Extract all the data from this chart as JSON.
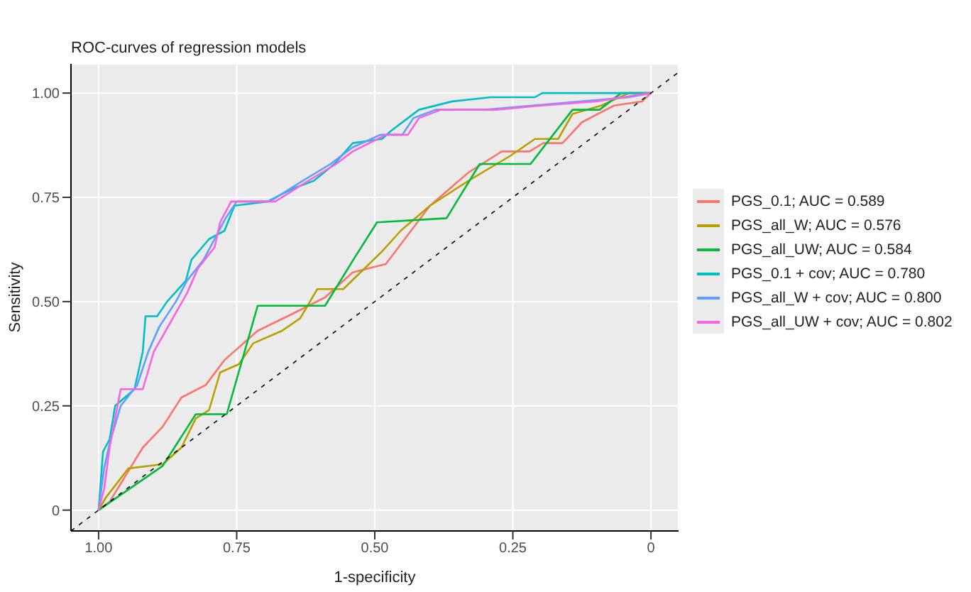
{
  "chart_data": {
    "type": "line",
    "title": "ROC-curves of regression models",
    "xlabel": "1-specificity",
    "ylabel": "Sensitivity",
    "xlim": [
      1.05,
      -0.05
    ],
    "ylim": [
      -0.05,
      1.07
    ],
    "xticks": [
      {
        "value": 1,
        "label": "1.00"
      },
      {
        "value": 0.75,
        "label": "0.75"
      },
      {
        "value": 0.5,
        "label": "0.50"
      },
      {
        "value": 0.25,
        "label": "0.25"
      },
      {
        "value": 0,
        "label": "0"
      }
    ],
    "yticks": [
      {
        "value": 0,
        "label": "0"
      },
      {
        "value": 0.25,
        "label": "0.25"
      },
      {
        "value": 0.5,
        "label": "0.50"
      },
      {
        "value": 0.75,
        "label": "0.75"
      },
      {
        "value": 1,
        "label": "1.00"
      }
    ],
    "grid": true,
    "legend": "right",
    "line_style": "solid",
    "marker": "none",
    "series": [
      {
        "name": "PGS_0.1; AUC = 0.589",
        "color": "#f8766d",
        "x": [
          1,
          0.98,
          0.92,
          0.884,
          0.85,
          0.806,
          0.772,
          0.712,
          0.65,
          0.59,
          0.54,
          0.48,
          0.4,
          0.33,
          0.27,
          0.22,
          0.195,
          0.16,
          0.125,
          0.067,
          0.016,
          0
        ],
        "values": [
          0,
          0.02,
          0.15,
          0.2,
          0.27,
          0.3,
          0.36,
          0.43,
          0.47,
          0.51,
          0.57,
          0.59,
          0.73,
          0.81,
          0.86,
          0.86,
          0.88,
          0.88,
          0.93,
          0.97,
          0.98,
          1
        ]
      },
      {
        "name": "PGS_all_W; AUC = 0.576",
        "color": "#b79f00",
        "x": [
          1,
          0.987,
          0.946,
          0.884,
          0.85,
          0.824,
          0.8,
          0.78,
          0.746,
          0.72,
          0.668,
          0.635,
          0.604,
          0.557,
          0.487,
          0.453,
          0.4,
          0.33,
          0.254,
          0.21,
          0.168,
          0.142,
          0.09,
          0.04,
          0
        ],
        "values": [
          0,
          0.03,
          0.1,
          0.11,
          0.15,
          0.22,
          0.24,
          0.33,
          0.35,
          0.4,
          0.43,
          0.46,
          0.53,
          0.53,
          0.62,
          0.67,
          0.73,
          0.79,
          0.85,
          0.89,
          0.89,
          0.95,
          0.97,
          1,
          1
        ]
      },
      {
        "name": "PGS_all_UW; AUC = 0.584",
        "color": "#00ba38",
        "x": [
          1,
          0.884,
          0.824,
          0.768,
          0.712,
          0.59,
          0.539,
          0.496,
          0.37,
          0.31,
          0.218,
          0.142,
          0.093,
          0.054,
          0
        ],
        "values": [
          0,
          0.106,
          0.23,
          0.23,
          0.49,
          0.49,
          0.6,
          0.69,
          0.7,
          0.83,
          0.83,
          0.96,
          0.96,
          1,
          1
        ]
      },
      {
        "name": "PGS_0.1 + cov; AUC = 0.780",
        "color": "#00bfc4",
        "x": [
          1,
          0.992,
          0.98,
          0.97,
          0.935,
          0.92,
          0.915,
          0.894,
          0.876,
          0.842,
          0.832,
          0.8,
          0.772,
          0.754,
          0.694,
          0.65,
          0.61,
          0.573,
          0.54,
          0.487,
          0.47,
          0.42,
          0.36,
          0.29,
          0.21,
          0.197,
          0
        ],
        "values": [
          0,
          0.14,
          0.17,
          0.25,
          0.29,
          0.38,
          0.465,
          0.465,
          0.5,
          0.55,
          0.6,
          0.65,
          0.67,
          0.73,
          0.74,
          0.77,
          0.79,
          0.83,
          0.88,
          0.89,
          0.91,
          0.96,
          0.98,
          0.99,
          0.99,
          1,
          1
        ]
      },
      {
        "name": "PGS_all_W + cov; AUC = 0.800",
        "color": "#619cff",
        "x": [
          1,
          0.99,
          0.98,
          0.96,
          0.93,
          0.91,
          0.89,
          0.86,
          0.84,
          0.81,
          0.79,
          0.77,
          0.75,
          0.69,
          0.63,
          0.58,
          0.54,
          0.49,
          0.45,
          0.43,
          0.39,
          0.3,
          0.04,
          0
        ],
        "values": [
          0,
          0.1,
          0.16,
          0.25,
          0.3,
          0.38,
          0.44,
          0.5,
          0.55,
          0.6,
          0.65,
          0.7,
          0.74,
          0.74,
          0.79,
          0.83,
          0.87,
          0.9,
          0.9,
          0.94,
          0.96,
          0.96,
          0.99,
          1
        ]
      },
      {
        "name": "PGS_all_UW + cov; AUC = 0.802",
        "color": "#f564e3",
        "x": [
          1,
          0.99,
          0.98,
          0.97,
          0.96,
          0.92,
          0.9,
          0.87,
          0.84,
          0.82,
          0.79,
          0.78,
          0.76,
          0.68,
          0.62,
          0.57,
          0.54,
          0.48,
          0.44,
          0.42,
          0.38,
          0.28,
          0.2,
          0.1,
          0
        ],
        "values": [
          0,
          0.05,
          0.15,
          0.22,
          0.29,
          0.29,
          0.38,
          0.45,
          0.52,
          0.58,
          0.63,
          0.69,
          0.74,
          0.74,
          0.79,
          0.83,
          0.86,
          0.9,
          0.9,
          0.94,
          0.96,
          0.96,
          0.97,
          0.98,
          1
        ]
      },
      {
        "type": "line",
        "color": "#000000",
        "line_style": "dashed",
        "x": [
          1.05,
          -0.05
        ],
        "values": [
          -0.05,
          1.05
        ]
      }
    ]
  }
}
